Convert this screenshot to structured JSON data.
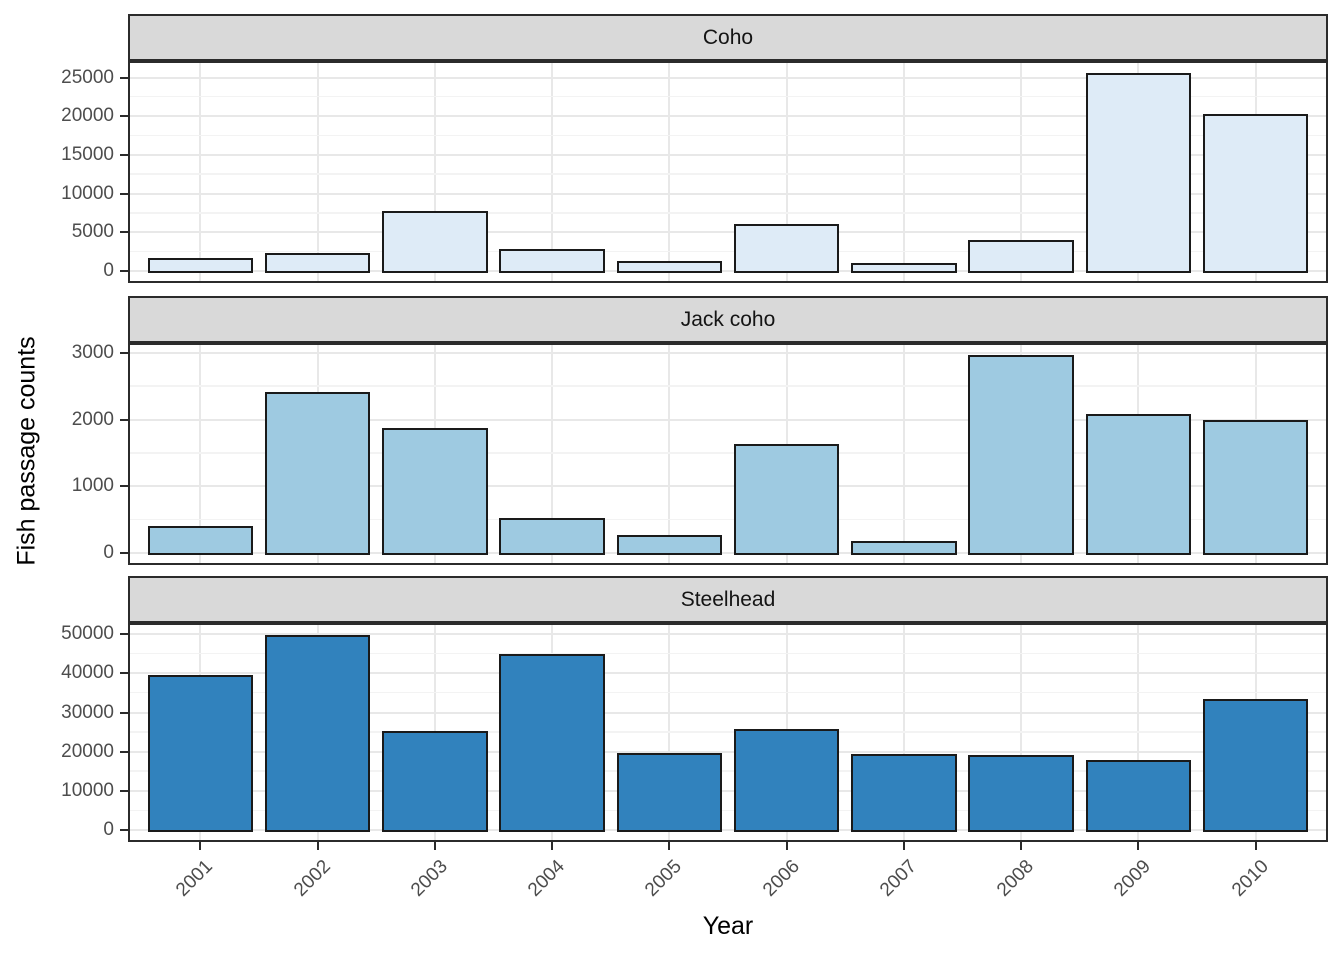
{
  "chart_data": {
    "type": "bar",
    "faceted": true,
    "facet_layout": "rows",
    "categories": [
      "2001",
      "2002",
      "2003",
      "2004",
      "2005",
      "2006",
      "2007",
      "2008",
      "2009",
      "2010"
    ],
    "xlabel": "Year",
    "ylabel": "Fish passage counts",
    "legend": "none",
    "grid": true,
    "bar_outline": "#1a1a1a",
    "facets": [
      {
        "label": "Coho",
        "bar_fill": "#deebf7",
        "values": [
          1750,
          2300,
          7800,
          2900,
          1300,
          6150,
          1100,
          4050,
          25600,
          20300
        ],
        "yticks": [
          0,
          5000,
          10000,
          15000,
          20000,
          25000
        ],
        "ytick_labels": [
          "0",
          "5000",
          "10000",
          "15000",
          "20000",
          "25000"
        ],
        "ylim": [
          0,
          26900
        ]
      },
      {
        "label": "Jack coho",
        "bar_fill": "#9ecae1",
        "values": [
          410,
          2420,
          1880,
          530,
          270,
          1630,
          180,
          2970,
          2090,
          2000
        ],
        "yticks": [
          0,
          1000,
          2000,
          3000
        ],
        "ytick_labels": [
          "0",
          "1000",
          "2000",
          "3000"
        ],
        "ylim": [
          0,
          3120
        ]
      },
      {
        "label": "Steelhead",
        "bar_fill": "#3182bd",
        "values": [
          39600,
          49800,
          25400,
          44900,
          19800,
          25850,
          19500,
          19300,
          18000,
          33450
        ],
        "yticks": [
          0,
          10000,
          20000,
          30000,
          40000,
          50000
        ],
        "ytick_labels": [
          "0",
          "10000",
          "20000",
          "30000",
          "40000",
          "50000"
        ],
        "ylim": [
          0,
          52300
        ]
      }
    ],
    "styles": {
      "strip_fill": "#d9d9d9",
      "panel_border": "#2b2b2b",
      "grid_major": "#e8e8e8",
      "grid_minor": "#f3f3f3",
      "tick_text": "#4d4d4d",
      "title_text": "#000000"
    }
  }
}
